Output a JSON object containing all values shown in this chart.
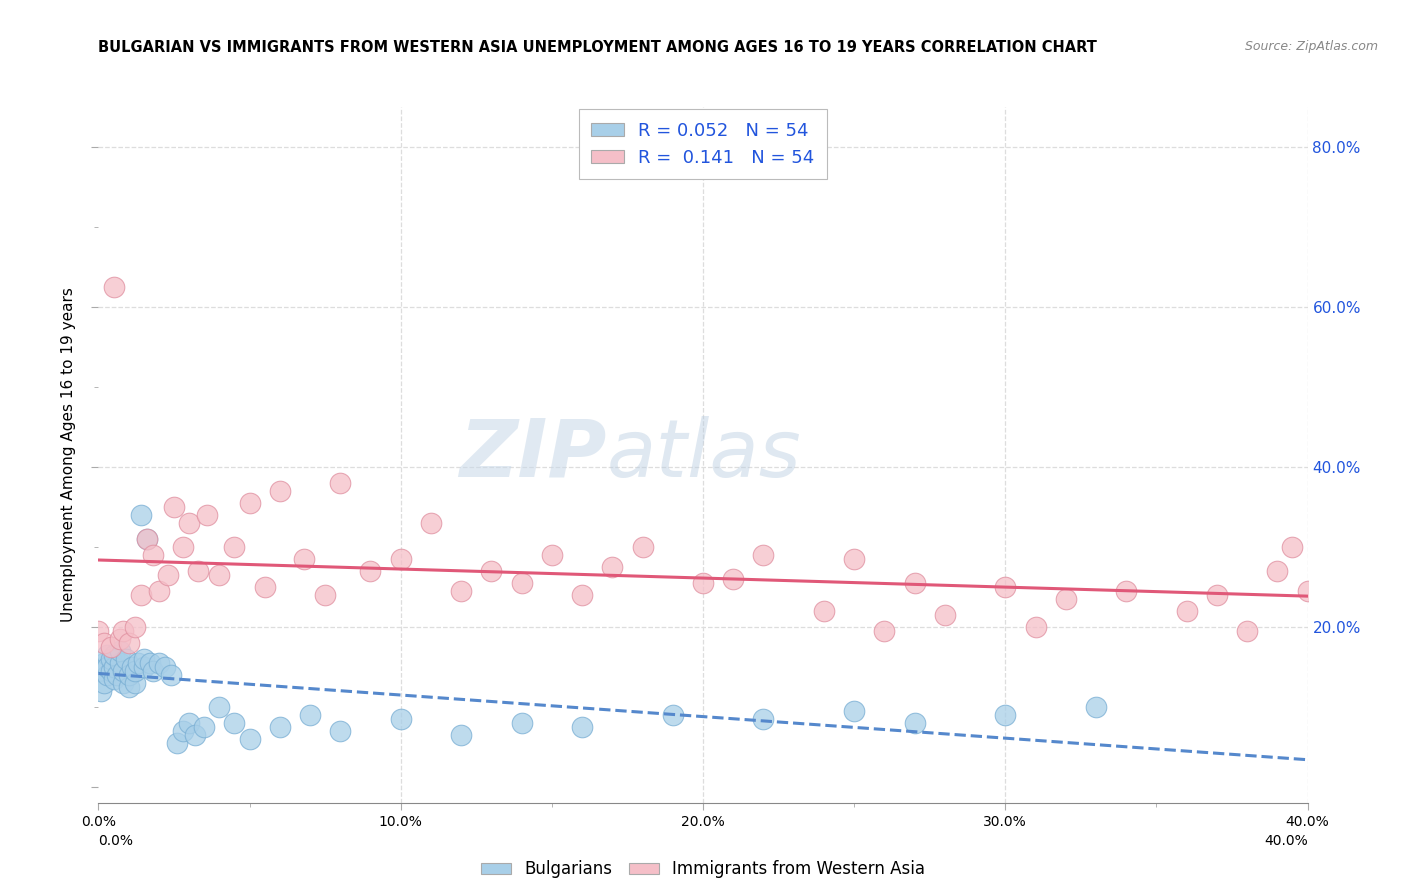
{
  "title": "BULGARIAN VS IMMIGRANTS FROM WESTERN ASIA UNEMPLOYMENT AMONG AGES 16 TO 19 YEARS CORRELATION CHART",
  "source": "Source: ZipAtlas.com",
  "ylabel": "Unemployment Among Ages 16 to 19 years",
  "xlim": [
    0.0,
    0.4
  ],
  "ylim": [
    -0.02,
    0.85
  ],
  "R_blue": 0.052,
  "N_blue": 54,
  "R_pink": 0.141,
  "N_pink": 54,
  "legend_labels": [
    "Bulgarians",
    "Immigrants from Western Asia"
  ],
  "blue_color": "#a8cfe8",
  "blue_edge_color": "#7aafd4",
  "blue_line_color": "#5588cc",
  "pink_color": "#f5bfc8",
  "pink_edge_color": "#e090a0",
  "pink_line_color": "#e05878",
  "legend_R_color": "#2255dd",
  "bg_color": "#ffffff",
  "watermark_zip": "ZIP",
  "watermark_atlas": "atlas",
  "grid_color": "#dddddd",
  "blue_x": [
    0.0,
    0.001,
    0.002,
    0.002,
    0.003,
    0.003,
    0.003,
    0.004,
    0.004,
    0.005,
    0.005,
    0.005,
    0.006,
    0.007,
    0.007,
    0.008,
    0.008,
    0.009,
    0.01,
    0.01,
    0.011,
    0.012,
    0.012,
    0.013,
    0.014,
    0.015,
    0.015,
    0.016,
    0.017,
    0.018,
    0.02,
    0.022,
    0.024,
    0.026,
    0.028,
    0.03,
    0.032,
    0.035,
    0.04,
    0.045,
    0.05,
    0.06,
    0.07,
    0.08,
    0.1,
    0.12,
    0.14,
    0.16,
    0.19,
    0.22,
    0.25,
    0.27,
    0.3,
    0.33
  ],
  "blue_y": [
    0.145,
    0.12,
    0.155,
    0.13,
    0.165,
    0.14,
    0.15,
    0.145,
    0.16,
    0.135,
    0.15,
    0.165,
    0.14,
    0.155,
    0.17,
    0.13,
    0.145,
    0.16,
    0.125,
    0.14,
    0.15,
    0.13,
    0.145,
    0.155,
    0.34,
    0.15,
    0.16,
    0.31,
    0.155,
    0.145,
    0.155,
    0.15,
    0.14,
    0.055,
    0.07,
    0.08,
    0.065,
    0.075,
    0.1,
    0.08,
    0.06,
    0.075,
    0.09,
    0.07,
    0.085,
    0.065,
    0.08,
    0.075,
    0.09,
    0.085,
    0.095,
    0.08,
    0.09,
    0.1
  ],
  "pink_x": [
    0.0,
    0.002,
    0.004,
    0.005,
    0.007,
    0.008,
    0.01,
    0.012,
    0.014,
    0.016,
    0.018,
    0.02,
    0.023,
    0.025,
    0.028,
    0.03,
    0.033,
    0.036,
    0.04,
    0.045,
    0.05,
    0.055,
    0.06,
    0.068,
    0.075,
    0.08,
    0.09,
    0.1,
    0.11,
    0.12,
    0.13,
    0.14,
    0.15,
    0.16,
    0.17,
    0.18,
    0.2,
    0.21,
    0.22,
    0.24,
    0.25,
    0.26,
    0.27,
    0.28,
    0.3,
    0.31,
    0.32,
    0.34,
    0.36,
    0.37,
    0.38,
    0.39,
    0.395,
    0.4
  ],
  "pink_y": [
    0.195,
    0.18,
    0.175,
    0.625,
    0.185,
    0.195,
    0.18,
    0.2,
    0.24,
    0.31,
    0.29,
    0.245,
    0.265,
    0.35,
    0.3,
    0.33,
    0.27,
    0.34,
    0.265,
    0.3,
    0.355,
    0.25,
    0.37,
    0.285,
    0.24,
    0.38,
    0.27,
    0.285,
    0.33,
    0.245,
    0.27,
    0.255,
    0.29,
    0.24,
    0.275,
    0.3,
    0.255,
    0.26,
    0.29,
    0.22,
    0.285,
    0.195,
    0.255,
    0.215,
    0.25,
    0.2,
    0.235,
    0.245,
    0.22,
    0.24,
    0.195,
    0.27,
    0.3,
    0.245
  ]
}
